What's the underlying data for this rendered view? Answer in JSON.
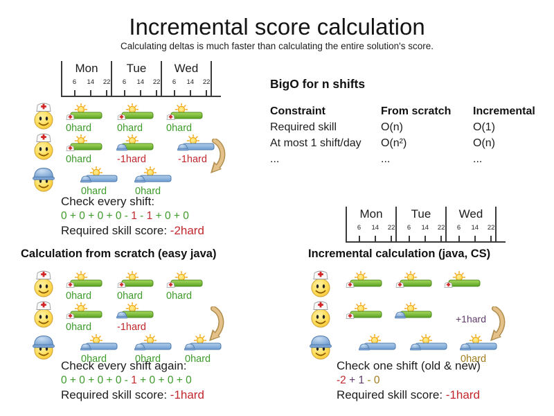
{
  "title": "Incremental score calculation",
  "subtitle": "Calculating deltas is much faster than calculating the entire solution's score.",
  "colors": {
    "green": "#3d9b2a",
    "red": "#c1272d",
    "purple": "#5f3a68",
    "gold": "#a17c1a"
  },
  "icons": {
    "nurse_employee": "nurse-smiley-icon",
    "builder_employee": "builder-smiley-icon",
    "nurse_shift": "sun-green-shift-nurse-cap-icon",
    "mismatch_shift": "sun-green-shift-builder-helmet-icon",
    "builder_shift": "sun-blue-shift-builder-helmet-icon",
    "move_arrow": "curved-move-arrow-icon"
  },
  "timeline": {
    "days": [
      "Mon",
      "Tue",
      "Wed"
    ],
    "hours": [
      "6",
      "14",
      "22"
    ]
  },
  "bigo": {
    "heading": "BigO for n shifts",
    "columns": [
      "Constraint",
      "From scratch",
      "Incremental"
    ],
    "rows": [
      [
        "Required skill",
        "O(n)",
        "O(1)"
      ],
      [
        "At most 1 shift/day",
        "O(n²)",
        "O(n)"
      ],
      [
        "...",
        "...",
        "..."
      ]
    ]
  },
  "initial": {
    "rows": [
      {
        "shifts": [
          {
            "label": "0hard",
            "color": "green"
          },
          {
            "label": "0hard",
            "color": "green"
          },
          {
            "label": "0hard",
            "color": "green"
          }
        ]
      },
      {
        "shifts": [
          {
            "label": "0hard",
            "color": "green"
          },
          {
            "label": "-1hard",
            "color": "red"
          },
          {
            "label": "-1hard",
            "color": "red"
          }
        ]
      },
      {
        "shifts": [
          {
            "label": "0hard",
            "color": "green"
          },
          {
            "label": "0hard",
            "color": "green"
          }
        ]
      }
    ],
    "check_title": "Check every shift:",
    "sum": [
      {
        "t": "0 + 0 + 0 + 0 - ",
        "c": "green"
      },
      {
        "t": "1",
        "c": "red"
      },
      {
        "t": " - ",
        "c": "green"
      },
      {
        "t": "1",
        "c": "red"
      },
      {
        "t": " + 0 + 0",
        "c": "green"
      }
    ],
    "score_label": "Required skill score: ",
    "score_value": "-2hard",
    "score_color": "red"
  },
  "scratch": {
    "heading": "Calculation from scratch (easy java)",
    "rows": [
      {
        "shifts": [
          {
            "label": "0hard",
            "color": "green"
          },
          {
            "label": "0hard",
            "color": "green"
          },
          {
            "label": "0hard",
            "color": "green"
          }
        ]
      },
      {
        "shifts": [
          {
            "label": "0hard",
            "color": "green"
          },
          {
            "label": "-1hard",
            "color": "red"
          }
        ]
      },
      {
        "shifts": [
          {
            "label": "0hard",
            "color": "green"
          },
          {
            "label": "0hard",
            "color": "green"
          },
          {
            "label": "0hard",
            "color": "green"
          }
        ]
      }
    ],
    "check_title": "Check every shift again:",
    "sum": [
      {
        "t": "0 + 0 + 0 + 0 - ",
        "c": "green"
      },
      {
        "t": "1",
        "c": "red"
      },
      {
        "t": " + 0 + 0 + 0",
        "c": "green"
      }
    ],
    "score_label": "Required skill score: ",
    "score_value": "-1hard",
    "score_color": "red"
  },
  "incremental": {
    "heading": "Incremental calculation (java, CS)",
    "delta_label": "+1hard",
    "delta_color": "purple",
    "moved_shift_label": "0hard",
    "moved_shift_color": "gold",
    "check_title": "Check one shift (old & new)",
    "sum": [
      {
        "t": "-2",
        "c": "red"
      },
      {
        "t": " + 1",
        "c": "purple"
      },
      {
        "t": " - 0",
        "c": "gold"
      }
    ],
    "score_label": "Required skill score: ",
    "score_value": "-1hard",
    "score_color": "red"
  }
}
